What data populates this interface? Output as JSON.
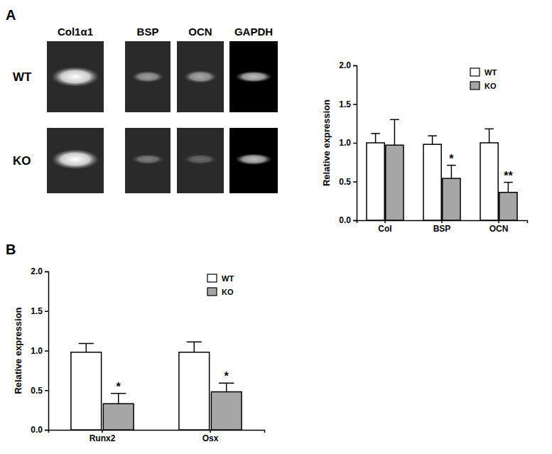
{
  "panels": [
    "A",
    "B"
  ],
  "gel": {
    "lanes": [
      "Col1α1",
      "BSP",
      "OCN",
      "GAPDH"
    ],
    "rows": [
      "WT",
      "KO"
    ]
  },
  "chart_data": [
    {
      "type": "bar",
      "y_label": "Relative expression",
      "categories": [
        "Col",
        "BSP",
        "OCN"
      ],
      "series": [
        {
          "name": "WT",
          "color": "#ffffff",
          "values": [
            1.0,
            0.98,
            1.0
          ],
          "errors": [
            0.12,
            0.11,
            0.18
          ],
          "annotations": [
            null,
            null,
            null
          ]
        },
        {
          "name": "KO",
          "color": "#a6a6a6",
          "values": [
            0.97,
            0.54,
            0.36
          ],
          "errors": [
            0.33,
            0.17,
            0.13
          ],
          "annotations": [
            null,
            "*",
            "**"
          ]
        }
      ],
      "ylim": [
        0,
        2.0
      ],
      "yticks": [
        {
          "value": 0,
          "label": "0.0"
        },
        {
          "value": 0.5,
          "label": "0.5"
        },
        {
          "value": 1.0,
          "label": "1.0"
        },
        {
          "value": 1.5,
          "label": "1.5"
        },
        {
          "value": 2.0,
          "label": "2.0"
        }
      ],
      "legend": "top-right"
    },
    {
      "type": "bar",
      "y_label": "Relative expression",
      "categories": [
        "Runx2",
        "Osx"
      ],
      "series": [
        {
          "name": "WT",
          "color": "#ffffff",
          "values": [
            0.98,
            0.98
          ],
          "errors": [
            0.11,
            0.13
          ],
          "annotations": [
            null,
            null
          ]
        },
        {
          "name": "KO",
          "color": "#a6a6a6",
          "values": [
            0.33,
            0.48
          ],
          "errors": [
            0.13,
            0.11
          ],
          "annotations": [
            "*",
            "*"
          ]
        }
      ],
      "ylim": [
        0,
        2.0
      ],
      "yticks": [
        {
          "value": 0,
          "label": "0.0"
        },
        {
          "value": 0.5,
          "label": "0.5"
        },
        {
          "value": 1.0,
          "label": "1.0"
        },
        {
          "value": 1.5,
          "label": "1.5"
        },
        {
          "value": 2.0,
          "label": "2.0"
        }
      ],
      "legend": "top-right"
    }
  ]
}
